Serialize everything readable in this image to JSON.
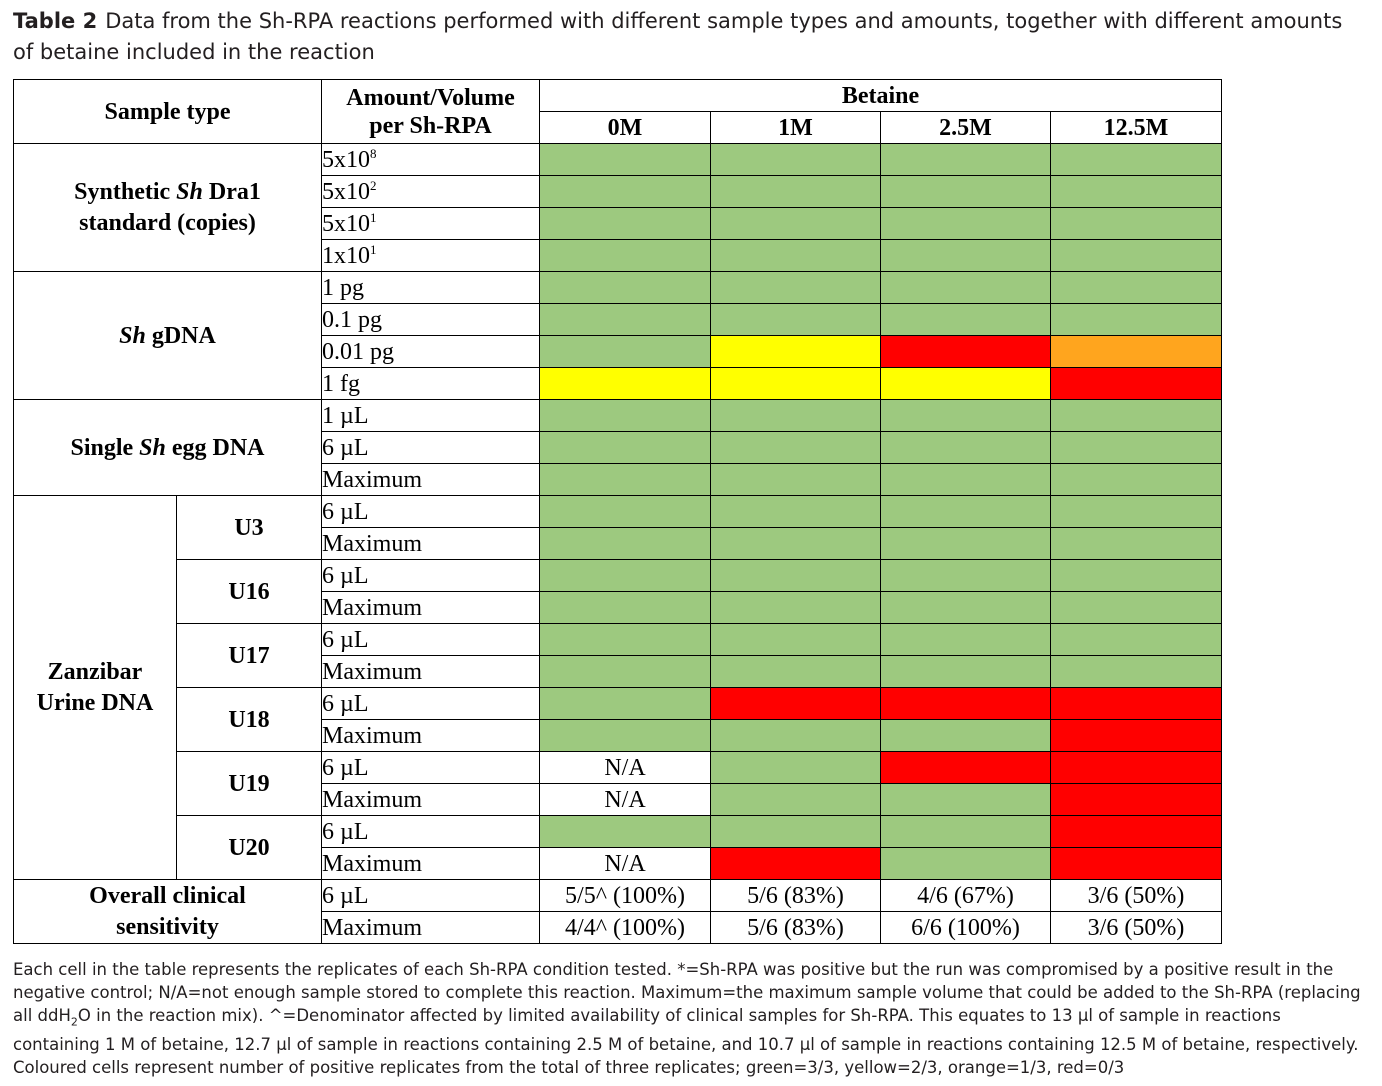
{
  "caption": {
    "label": "Table 2",
    "text": "Data from the Sh-RPA reactions performed with different sample types and amounts, together with different amounts of betaine included in the reaction"
  },
  "colors": {
    "green": "#9dc97f",
    "yellow": "#ffff00",
    "orange": "#ffa51e",
    "red": "#ff0000",
    "white": "#ffffff"
  },
  "header": {
    "sample_type": "Sample type",
    "amount_line1": "Amount/Volume",
    "amount_line2": "per Sh-RPA",
    "betaine": "Betaine",
    "concentrations": [
      "0M",
      "1M",
      "2.5M",
      "12.5M"
    ]
  },
  "groups": {
    "synthetic": {
      "pre": "Synthetic ",
      "italic": "Sh",
      "post": " Dra1",
      "line2": "standard (copies)"
    },
    "gdna": {
      "italic": "Sh",
      "post": " gDNA"
    },
    "egg": {
      "pre": "Single ",
      "italic": "Sh",
      "post": " egg DNA"
    },
    "zanzibar": {
      "line1": "Zanzibar",
      "line2": "Urine DNA"
    },
    "overall": {
      "line1": "Overall clinical",
      "line2": "sensitivity"
    }
  },
  "rows": [
    {
      "amount": "5x10",
      "sup": "8",
      "cells": [
        "green",
        "green",
        "green",
        "green"
      ]
    },
    {
      "amount": "5x10",
      "sup": "2",
      "cells": [
        "green",
        "green",
        "green",
        "green"
      ]
    },
    {
      "amount": "5x10",
      "sup": "1",
      "cells": [
        "green",
        "green",
        "green",
        "green"
      ]
    },
    {
      "amount": "1x10",
      "sup": "1",
      "cells": [
        "green",
        "green",
        "green",
        "green"
      ]
    },
    {
      "amount": "1 pg",
      "cells": [
        "green",
        "green",
        "green",
        "green"
      ]
    },
    {
      "amount": "0.1 pg",
      "cells": [
        "green",
        "green",
        "green",
        "green"
      ]
    },
    {
      "amount": "0.01 pg",
      "cells": [
        "green",
        "yellow",
        "red",
        "orange"
      ]
    },
    {
      "amount": "1 fg",
      "cells": [
        "yellow",
        "yellow",
        "yellow",
        "red"
      ]
    },
    {
      "amount": "1 µL",
      "cells": [
        "green",
        "green",
        "green",
        "green"
      ]
    },
    {
      "amount": "6 µL",
      "cells": [
        "green",
        "green",
        "green",
        "green"
      ]
    },
    {
      "amount": "Maximum",
      "cells": [
        "green",
        "green",
        "green",
        "green"
      ]
    },
    {
      "sub": "U3",
      "amount": "6 µL",
      "cells": [
        "green",
        "green",
        "green",
        "green"
      ]
    },
    {
      "amount": "Maximum",
      "cells": [
        "green",
        "green",
        "green",
        "green"
      ]
    },
    {
      "sub": "U16",
      "amount": "6 µL",
      "cells": [
        "green",
        "green",
        "green",
        "green"
      ]
    },
    {
      "amount": "Maximum",
      "cells": [
        "green",
        "green",
        "green",
        "green"
      ]
    },
    {
      "sub": "U17",
      "amount": "6 µL",
      "cells": [
        "green",
        "green",
        "green",
        "green"
      ]
    },
    {
      "amount": "Maximum",
      "cells": [
        "green",
        "green",
        "green",
        "green"
      ]
    },
    {
      "sub": "U18",
      "amount": "6 µL",
      "cells": [
        "green",
        "red",
        "red",
        "red"
      ]
    },
    {
      "amount": "Maximum",
      "cells": [
        "green",
        "green",
        "green",
        "red"
      ]
    },
    {
      "sub": "U19",
      "amount": "6 µL",
      "cells": [
        "N/A",
        "green",
        "red",
        "red"
      ]
    },
    {
      "amount": "Maximum",
      "cells": [
        "N/A",
        "green",
        "green",
        "red"
      ]
    },
    {
      "sub": "U20",
      "amount": "6 µL",
      "cells": [
        "green",
        "green",
        "green",
        "red"
      ]
    },
    {
      "amount": "Maximum",
      "cells": [
        "N/A",
        "red",
        "green",
        "red"
      ]
    }
  ],
  "sensitivity": [
    {
      "amount": "6 µL",
      "values": [
        "5/5^ (100%)",
        "5/6 (83%)",
        "4/6 (67%)",
        "3/6 (50%)"
      ]
    },
    {
      "amount": "Maximum",
      "values": [
        "4/4^ (100%)",
        "5/6 (83%)",
        "6/6 (100%)",
        "3/6 (50%)"
      ]
    }
  ],
  "footnote": {
    "p1": "Each cell in the table represents the replicates of each Sh-RPA condition tested. *=Sh-RPA was positive but the run was compromised by a positive result in the negative control; N/A=not enough sample stored to complete this reaction. Maximum=the maximum sample volume that could be added to the Sh-RPA (replacing all ddH",
    "sub": "2",
    "p2": "O in the reaction mix). ^=Denominator affected by limited availability of clinical samples for Sh-RPA. This equates to 13 µl of sample in reactions containing 1 M of betaine, 12.7 µl of sample in reactions containing 2.5 M of betaine, and 10.7 µl of sample in reactions containing 12.5 M of betaine, respectively. Coloured cells represent number of positive replicates from the total of three replicates; green=3/3, yellow=2/3, orange=1/3, red=0/3"
  }
}
